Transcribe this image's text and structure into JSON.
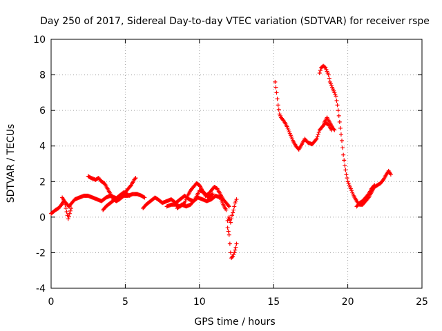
{
  "chart_data": {
    "type": "scatter",
    "title": "Day 250 of 2017, Sidereal Day-to-day VTEC variation (SDTVAR) for receiver rspe",
    "xlabel": "GPS time / hours",
    "ylabel": "SDTVAR / TECUs",
    "xlim": [
      0,
      25
    ],
    "ylim": [
      -4,
      10
    ],
    "xticks": [
      "0",
      "5",
      "10",
      "15",
      "20",
      "25"
    ],
    "yticks": [
      "-4",
      "-2",
      "0",
      "2",
      "4",
      "6",
      "8",
      "10"
    ],
    "grid": true,
    "marker": "+",
    "color": "#ff0000",
    "series": [
      {
        "segments": [
          [
            [
              0.0,
              0.2
            ],
            [
              0.3,
              0.4
            ],
            [
              0.5,
              0.5
            ],
            [
              0.7,
              0.7
            ],
            [
              0.85,
              0.9
            ],
            [
              1.0,
              0.8
            ],
            [
              1.2,
              0.6
            ],
            [
              1.4,
              0.8
            ],
            [
              1.6,
              1.0
            ],
            [
              1.9,
              1.1
            ],
            [
              2.2,
              1.2
            ],
            [
              2.5,
              1.2
            ],
            [
              2.8,
              1.1
            ],
            [
              3.1,
              1.0
            ],
            [
              3.4,
              0.9
            ],
            [
              3.7,
              1.1
            ],
            [
              4.0,
              1.2
            ],
            [
              4.3,
              1.1
            ],
            [
              4.6,
              1.0
            ],
            [
              4.9,
              1.2
            ],
            [
              5.2,
              1.2
            ],
            [
              5.5,
              1.3
            ],
            [
              5.8,
              1.3
            ],
            [
              6.1,
              1.2
            ],
            [
              6.3,
              1.1
            ]
          ],
          [
            [
              0.75,
              1.1
            ],
            [
              0.9,
              0.9
            ],
            [
              1.05,
              0.3
            ],
            [
              1.1,
              0.1
            ],
            [
              1.15,
              -0.1
            ],
            [
              1.25,
              0.2
            ],
            [
              1.35,
              0.5
            ]
          ],
          [
            [
              2.5,
              2.3
            ],
            [
              2.7,
              2.2
            ],
            [
              3.0,
              2.1
            ],
            [
              3.2,
              2.2
            ],
            [
              3.4,
              2.0
            ],
            [
              3.6,
              1.9
            ],
            [
              3.8,
              1.6
            ],
            [
              4.0,
              1.3
            ],
            [
              4.2,
              1.0
            ],
            [
              4.4,
              0.9
            ],
            [
              4.6,
              1.0
            ],
            [
              4.8,
              1.2
            ],
            [
              5.0,
              1.4
            ],
            [
              5.2,
              1.6
            ],
            [
              5.4,
              1.8
            ],
            [
              5.6,
              2.1
            ],
            [
              5.7,
              2.2
            ]
          ],
          [
            [
              3.5,
              0.4
            ],
            [
              3.7,
              0.6
            ],
            [
              4.0,
              0.8
            ],
            [
              4.3,
              1.0
            ],
            [
              4.6,
              1.2
            ],
            [
              4.9,
              1.4
            ],
            [
              5.1,
              1.3
            ],
            [
              5.3,
              1.2
            ]
          ],
          [
            [
              6.2,
              0.5
            ],
            [
              6.4,
              0.7
            ],
            [
              6.7,
              0.9
            ],
            [
              7.0,
              1.1
            ],
            [
              7.2,
              1.0
            ],
            [
              7.5,
              0.8
            ],
            [
              7.8,
              0.9
            ],
            [
              8.1,
              1.0
            ],
            [
              8.4,
              0.8
            ],
            [
              8.7,
              1.0
            ],
            [
              9.0,
              1.2
            ],
            [
              9.3,
              1.0
            ],
            [
              9.6,
              0.9
            ],
            [
              9.9,
              1.1
            ],
            [
              10.2,
              1.0
            ],
            [
              10.5,
              0.9
            ],
            [
              10.8,
              1.0
            ],
            [
              11.1,
              1.2
            ],
            [
              11.4,
              1.1
            ],
            [
              11.6,
              0.7
            ],
            [
              11.8,
              0.4
            ]
          ],
          [
            [
              7.8,
              0.6
            ],
            [
              8.1,
              0.7
            ],
            [
              8.4,
              0.7
            ],
            [
              8.7,
              0.6
            ],
            [
              9.0,
              0.8
            ],
            [
              9.2,
              1.2
            ],
            [
              9.4,
              1.5
            ],
            [
              9.6,
              1.7
            ],
            [
              9.8,
              1.9
            ],
            [
              10.0,
              1.8
            ],
            [
              10.2,
              1.5
            ],
            [
              10.4,
              1.2
            ],
            [
              10.6,
              1.3
            ],
            [
              10.8,
              1.5
            ],
            [
              11.0,
              1.7
            ],
            [
              11.2,
              1.6
            ],
            [
              11.4,
              1.3
            ],
            [
              11.6,
              1.0
            ],
            [
              11.8,
              0.8
            ],
            [
              12.0,
              0.6
            ]
          ],
          [
            [
              8.5,
              0.5
            ],
            [
              8.8,
              0.7
            ],
            [
              9.1,
              0.6
            ],
            [
              9.4,
              0.7
            ],
            [
              9.7,
              1.0
            ],
            [
              10.0,
              1.5
            ],
            [
              10.3,
              1.4
            ],
            [
              10.6,
              1.1
            ],
            [
              10.9,
              1.3
            ]
          ],
          [
            [
              11.9,
              -0.6
            ],
            [
              12.0,
              -1.0
            ],
            [
              12.05,
              -1.5
            ],
            [
              12.1,
              -2.0
            ],
            [
              12.15,
              -2.3
            ],
            [
              12.25,
              -2.2
            ],
            [
              12.35,
              -2.0
            ],
            [
              12.45,
              -1.7
            ],
            [
              12.5,
              -1.5
            ]
          ],
          [
            [
              11.9,
              -0.2
            ],
            [
              12.0,
              0.0
            ],
            [
              12.1,
              -0.3
            ],
            [
              12.2,
              0.1
            ],
            [
              12.3,
              0.4
            ],
            [
              12.4,
              0.8
            ],
            [
              12.5,
              1.0
            ]
          ]
        ]
      },
      {
        "segments": [
          [
            [
              15.1,
              7.6
            ],
            [
              15.2,
              7.0
            ],
            [
              15.3,
              6.3
            ],
            [
              15.4,
              5.8
            ],
            [
              15.5,
              5.6
            ],
            [
              15.7,
              5.4
            ],
            [
              15.9,
              5.1
            ],
            [
              16.1,
              4.7
            ],
            [
              16.3,
              4.3
            ],
            [
              16.5,
              4.0
            ],
            [
              16.7,
              3.8
            ],
            [
              16.9,
              4.1
            ],
            [
              17.1,
              4.4
            ],
            [
              17.3,
              4.2
            ],
            [
              17.6,
              4.1
            ],
            [
              17.9,
              4.4
            ],
            [
              18.1,
              4.9
            ],
            [
              18.3,
              5.1
            ],
            [
              18.5,
              5.3
            ],
            [
              18.7,
              5.2
            ],
            [
              18.9,
              4.9
            ]
          ],
          [
            [
              18.1,
              8.1
            ],
            [
              18.2,
              8.4
            ],
            [
              18.35,
              8.5
            ],
            [
              18.5,
              8.4
            ],
            [
              18.7,
              8.0
            ],
            [
              18.8,
              7.6
            ],
            [
              19.0,
              7.2
            ],
            [
              19.2,
              6.8
            ],
            [
              19.3,
              6.3
            ],
            [
              19.4,
              5.7
            ],
            [
              19.5,
              5.0
            ],
            [
              19.6,
              4.3
            ],
            [
              19.7,
              3.5
            ],
            [
              19.8,
              2.9
            ],
            [
              19.9,
              2.4
            ],
            [
              20.0,
              2.0
            ],
            [
              20.2,
              1.6
            ],
            [
              20.4,
              1.2
            ],
            [
              20.6,
              0.9
            ],
            [
              20.8,
              0.7
            ],
            [
              21.0,
              0.7
            ],
            [
              21.2,
              0.9
            ],
            [
              21.4,
              1.1
            ],
            [
              21.6,
              1.4
            ],
            [
              21.8,
              1.7
            ],
            [
              22.0,
              1.8
            ],
            [
              22.2,
              1.9
            ],
            [
              22.4,
              2.1
            ],
            [
              22.6,
              2.4
            ],
            [
              22.75,
              2.6
            ],
            [
              22.9,
              2.4
            ]
          ],
          [
            [
              18.4,
              5.3
            ],
            [
              18.6,
              5.6
            ],
            [
              18.8,
              5.3
            ],
            [
              19.0,
              5.0
            ],
            [
              19.1,
              4.9
            ]
          ],
          [
            [
              20.6,
              0.6
            ],
            [
              20.8,
              0.8
            ],
            [
              21.0,
              0.9
            ],
            [
              21.2,
              1.1
            ],
            [
              21.4,
              1.3
            ],
            [
              21.6,
              1.6
            ],
            [
              21.8,
              1.8
            ]
          ]
        ]
      }
    ]
  }
}
